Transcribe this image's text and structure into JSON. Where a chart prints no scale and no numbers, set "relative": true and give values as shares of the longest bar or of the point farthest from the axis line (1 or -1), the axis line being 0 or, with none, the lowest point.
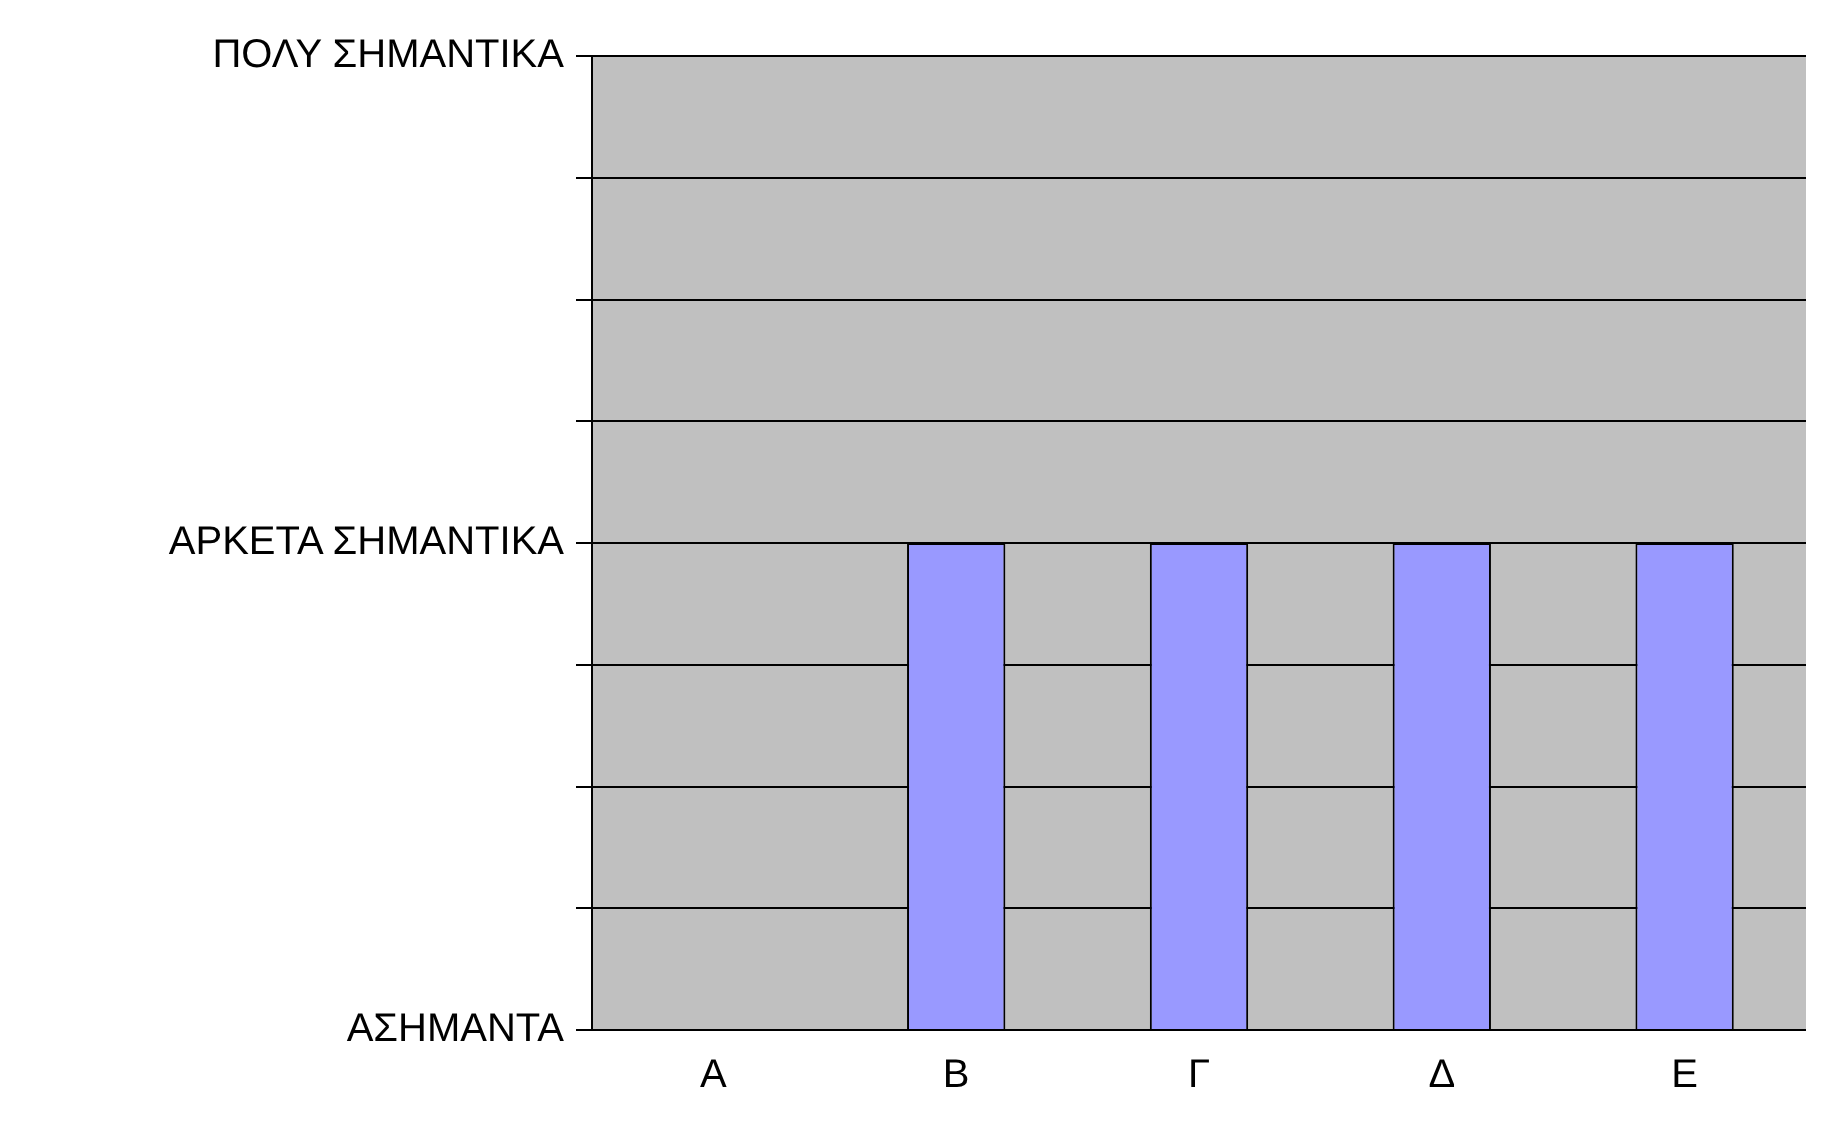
{
  "chart_data": {
    "type": "bar",
    "categories": [
      "Α",
      "Β",
      "Γ",
      "Δ",
      "Ε"
    ],
    "values": [
      0,
      1,
      1,
      1,
      1
    ],
    "color": "#9999ff",
    "relative": true,
    "annotations": [
      "ΑΣΗΜΑΝΤΑ",
      "ΑΡΚΕΤΑ ΣΗΜΑΝΤΙΚΑ",
      "ΠΟΛΥ ΣΗΜΑΝΤΙΚΑ"
    ],
    "grid": "y",
    "legend": false
  }
}
